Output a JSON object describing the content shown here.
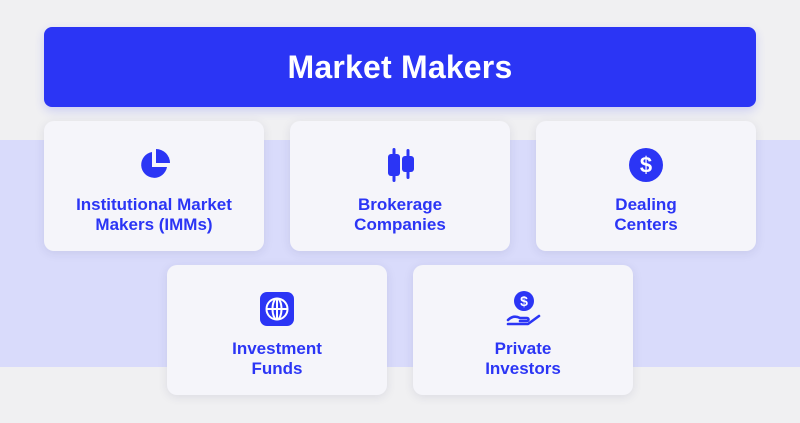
{
  "title": "Market Makers",
  "colors": {
    "accent": "#2b35f5",
    "band": "#d9dbfb",
    "background": "#f0f0f2",
    "card": "#f5f5fa"
  },
  "cards": [
    {
      "icon": "pie-chart-icon",
      "lines": [
        "Institutional Market",
        "Makers (IMMs)"
      ]
    },
    {
      "icon": "candlestick-chart-icon",
      "lines": [
        "Brokerage",
        "Companies"
      ]
    },
    {
      "icon": "dollar-coin-icon",
      "lines": [
        "Dealing",
        "Centers"
      ]
    },
    {
      "icon": "globe-icon",
      "lines": [
        "Investment",
        "Funds"
      ]
    },
    {
      "icon": "hand-coin-icon",
      "lines": [
        "Private",
        "Investors"
      ]
    }
  ]
}
